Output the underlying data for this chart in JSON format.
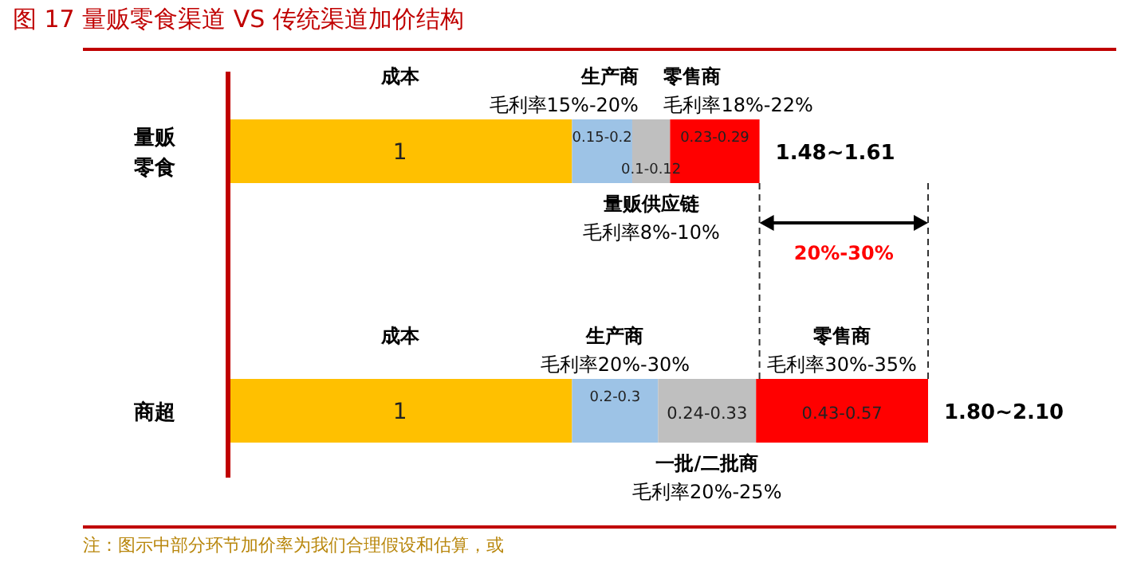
{
  "chart_data": {
    "type": "bar",
    "orientation": "horizontal",
    "stacked": true,
    "title": "图 17   量贩零食渠道 VS 传统渠道加价结构",
    "categories": [
      "量贩零食",
      "商超"
    ],
    "series": [
      {
        "color": "#ffc000",
        "values": [
          1,
          1
        ],
        "value_labels": [
          "1",
          "1"
        ]
      },
      {
        "color": "#9dc3e6",
        "values": [
          0.175,
          0.25
        ],
        "value_labels": [
          "0.15-0.2",
          "0.2-0.3"
        ]
      },
      {
        "color": "#bfbfbf",
        "values": [
          0.11,
          0.285
        ],
        "value_labels": [
          "0.1-0.12",
          "0.24-0.33"
        ]
      },
      {
        "color": "#ff0000",
        "values": [
          0.26,
          0.5
        ],
        "value_labels": [
          "0.23-0.29",
          "0.43-0.57"
        ]
      }
    ],
    "totals": [
      "1.48~1.61",
      "1.80~2.10"
    ],
    "annotations": [
      "成本",
      "生产商",
      "毛利率15%-20%",
      "零售商",
      "毛利率18%-22%",
      "量贩供应链",
      "毛利率8%-10%",
      "成本",
      "生产商",
      "毛利率20%-30%",
      "零售商",
      "毛利率30%-35%",
      "一批/二批商",
      "毛利率20%-25%",
      "20%-30%",
      "注：图示中部分环节加价率为我们合理假设和估算，或"
    ]
  }
}
